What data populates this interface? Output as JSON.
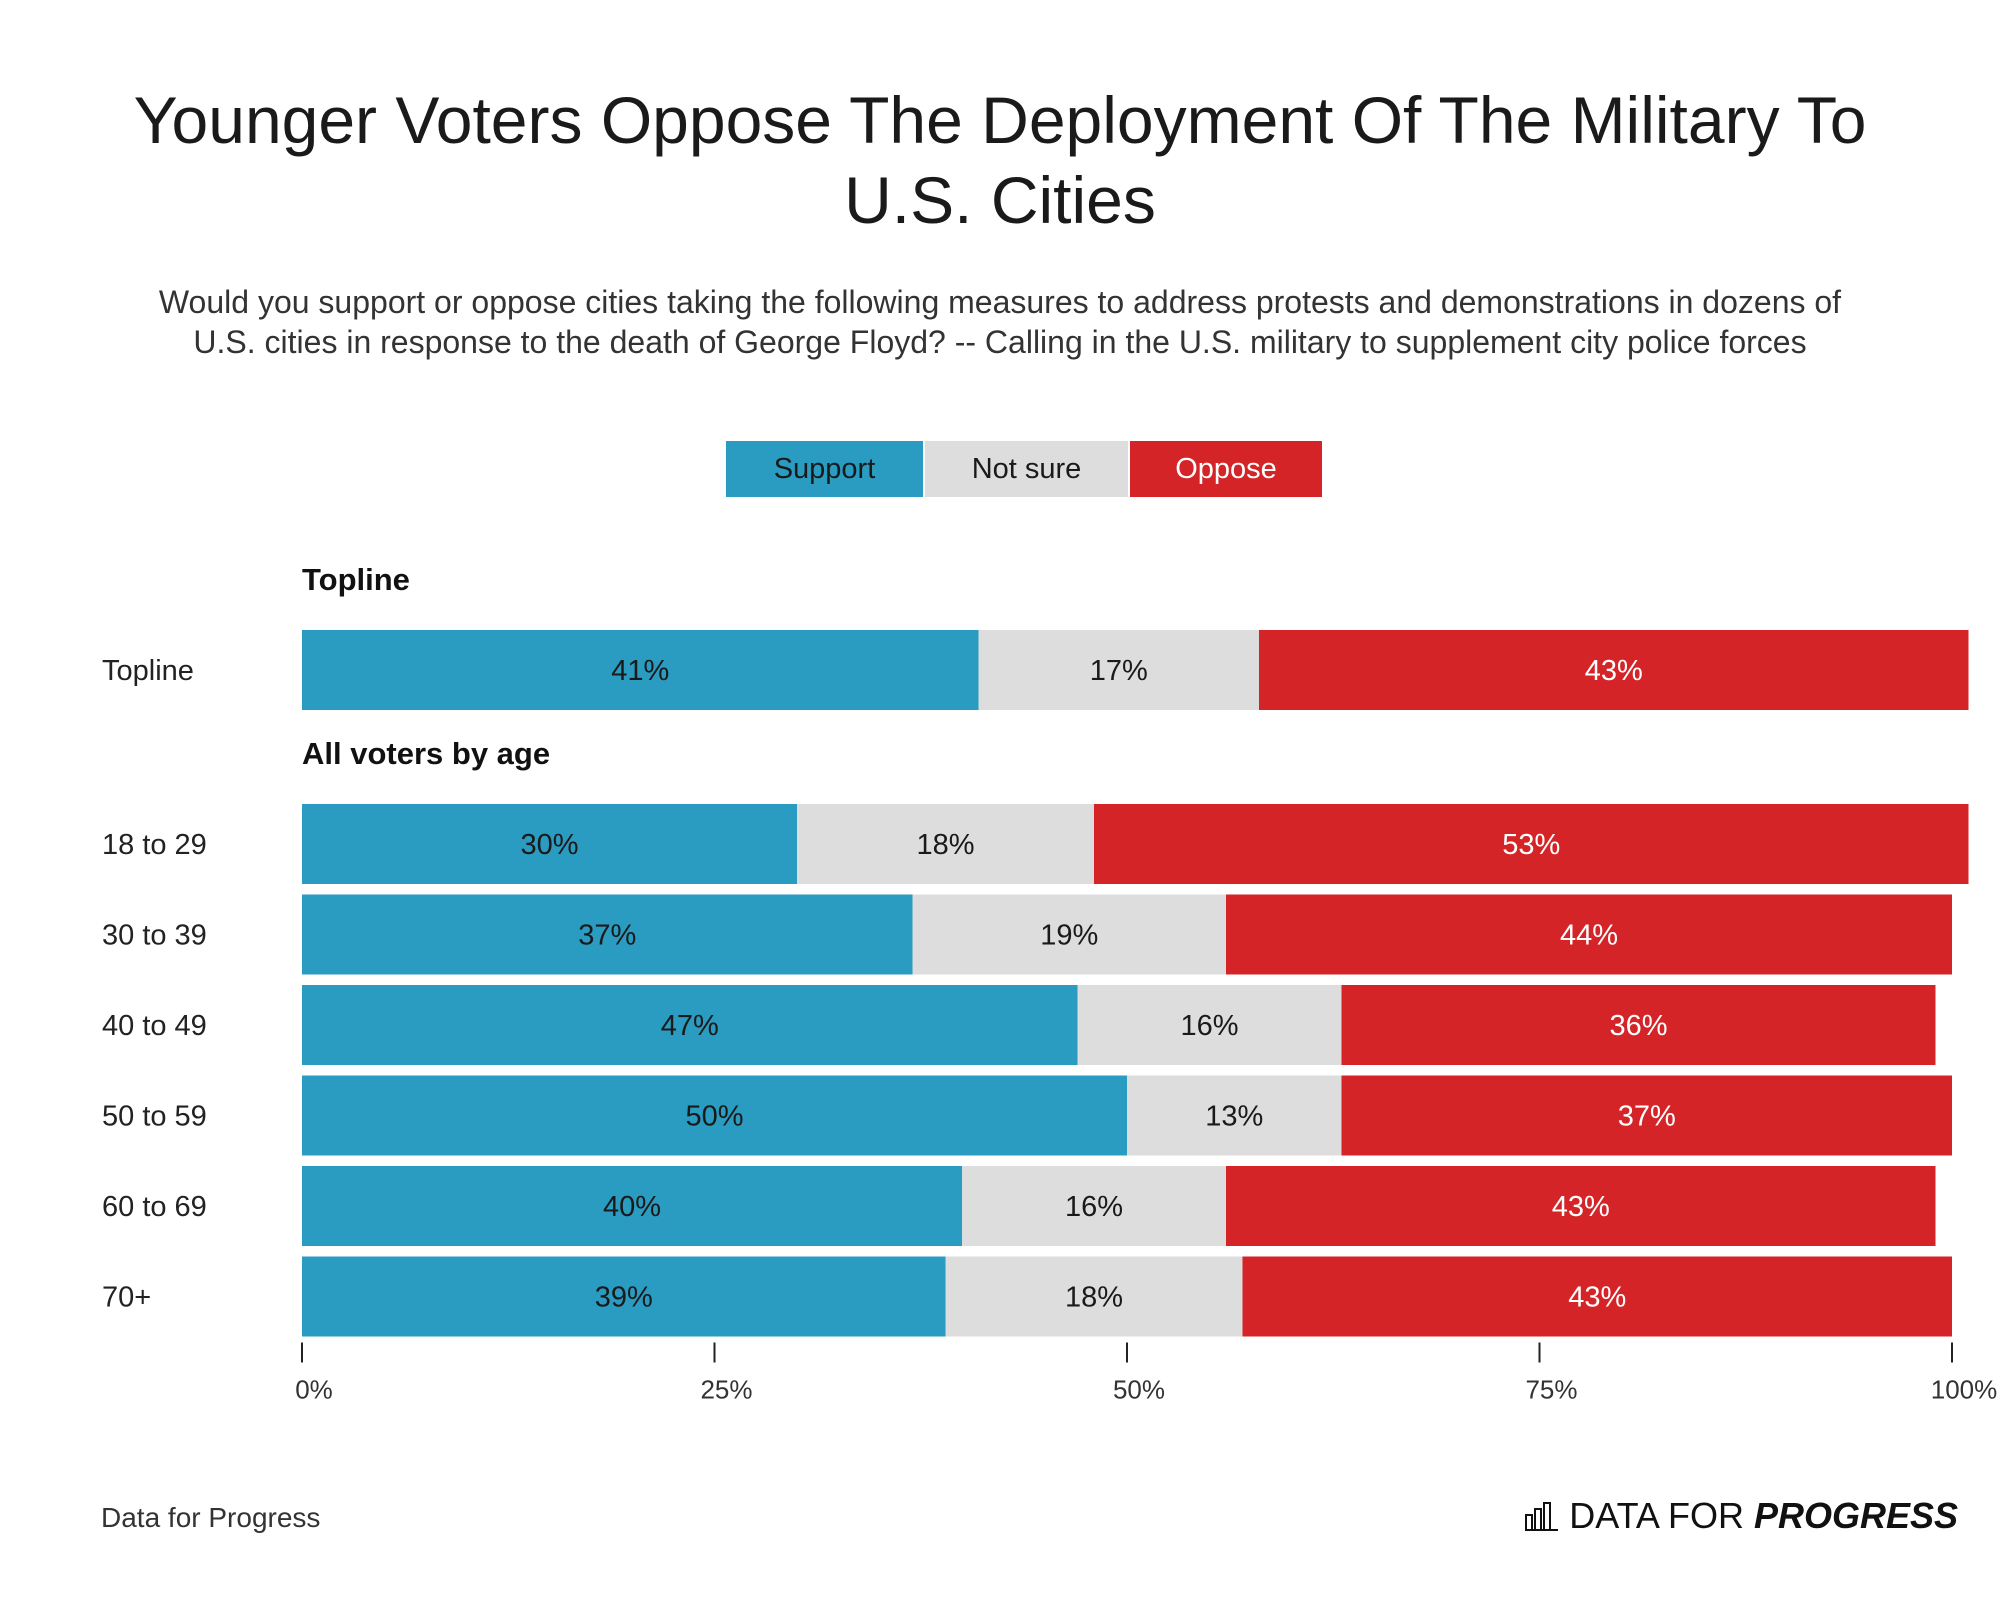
{
  "title": "Younger Voters Oppose The Deployment Of The Military To U.S. Cities",
  "subtitle": "Would you support or oppose cities taking the following measures to address protests and demonstrations in dozens of U.S. cities in response to the death of George Floyd? -- Calling in the U.S. military to supplement city police forces",
  "legend": {
    "support": "Support",
    "not_sure": "Not sure",
    "oppose": "Oppose"
  },
  "colors": {
    "support": "#2a9bc1",
    "not_sure": "#dddddd",
    "oppose": "#d52427",
    "support_text": "#1a1a1a",
    "not_sure_text": "#1a1a1a",
    "oppose_text": "#ffffff"
  },
  "footer": {
    "source": "Data for Progress",
    "brand_light": "DATA FOR",
    "brand_bold": "PROGRESS",
    "brand_icon": "bar-chart-logo-icon"
  },
  "chart_data": {
    "type": "bar",
    "orientation": "horizontal",
    "stacked": true,
    "series_names": [
      "Support",
      "Not sure",
      "Oppose"
    ],
    "xlim": [
      0,
      100
    ],
    "xticks": [
      0,
      25,
      50,
      75,
      100
    ],
    "xtick_labels": [
      "0%",
      "25%",
      "50%",
      "75%",
      "100%"
    ],
    "groups": [
      {
        "heading": "Topline",
        "rows": [
          {
            "label": "Topline",
            "values": [
              41,
              17,
              43
            ],
            "labels": [
              "41%",
              "17%",
              "43%"
            ]
          }
        ]
      },
      {
        "heading": "All voters by age",
        "rows": [
          {
            "label": "18 to 29",
            "values": [
              30,
              18,
              53
            ],
            "labels": [
              "30%",
              "18%",
              "53%"
            ]
          },
          {
            "label": "30 to 39",
            "values": [
              37,
              19,
              44
            ],
            "labels": [
              "37%",
              "19%",
              "44%"
            ]
          },
          {
            "label": "40 to 49",
            "values": [
              47,
              16,
              36
            ],
            "labels": [
              "47%",
              "16%",
              "36%"
            ]
          },
          {
            "label": "50 to 59",
            "values": [
              50,
              13,
              37
            ],
            "labels": [
              "50%",
              "13%",
              "37%"
            ]
          },
          {
            "label": "60 to 69",
            "values": [
              40,
              16,
              43
            ],
            "labels": [
              "40%",
              "16%",
              "43%"
            ]
          },
          {
            "label": "70+",
            "values": [
              39,
              18,
              43
            ],
            "labels": [
              "39%",
              "18%",
              "43%"
            ]
          }
        ]
      }
    ]
  }
}
